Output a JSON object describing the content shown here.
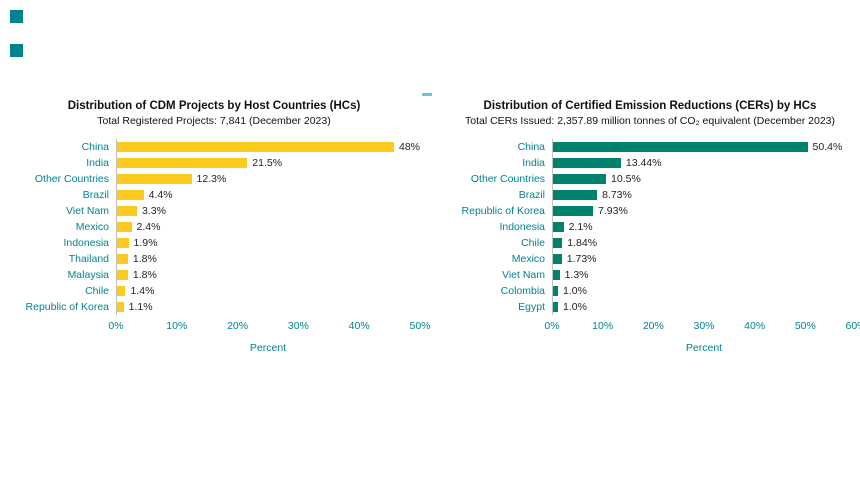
{
  "page": {
    "background": "#ffffff",
    "accent_color": "#00838F",
    "title_text_color": "#111111",
    "value_text_color": "#1f1f1f",
    "dash_color": "#6cc5d9"
  },
  "chart_data": [
    {
      "type": "bar",
      "orientation": "horizontal",
      "title": "Distribution of CDM Projects by Host Countries (HCs)",
      "subtitle": "Total Registered Projects: 7,841 (December 2023)",
      "xlabel": "Percent",
      "xlim": [
        0,
        50
      ],
      "xticks": [
        "0%",
        "10%",
        "20%",
        "30%",
        "40%",
        "50%"
      ],
      "bar_color": "#FCCB1D",
      "grid": false,
      "legend": "none",
      "categories": [
        "China",
        "India",
        "Other Countries",
        "Brazil",
        "Viet Nam",
        "Mexico",
        "Indonesia",
        "Thailand",
        "Malaysia",
        "Chile",
        "Republic of Korea"
      ],
      "values": [
        48,
        21.5,
        12.3,
        4.4,
        3.3,
        2.4,
        1.9,
        1.8,
        1.8,
        1.4,
        1.1
      ],
      "value_labels": [
        "48%",
        "21.5%",
        "12.3%",
        "4.4%",
        "3.3%",
        "2.4%",
        "1.9%",
        "1.8%",
        "1.8%",
        "1.4%",
        "1.1%"
      ]
    },
    {
      "type": "bar",
      "orientation": "horizontal",
      "title": "Distribution of Certified Emission Reductions (CERs) by HCs",
      "subtitle": "Total CERs Issued: 2,357.89 million tonnes of CO₂ equivalent (December 2023)",
      "xlabel": "Percent",
      "xlim": [
        0,
        60
      ],
      "xticks": [
        "0%",
        "10%",
        "20%",
        "30%",
        "40%",
        "50%",
        "60%"
      ],
      "bar_color": "#00836E",
      "grid": false,
      "legend": "none",
      "categories": [
        "China",
        "India",
        "Other Countries",
        "Brazil",
        "Republic of Korea",
        "Indonesia",
        "Chile",
        "Mexico",
        "Viet Nam",
        "Colombia",
        "Egypt"
      ],
      "values": [
        50.4,
        13.44,
        10.5,
        8.73,
        7.93,
        2.1,
        1.84,
        1.73,
        1.3,
        1.0,
        1.0
      ],
      "value_labels": [
        "50.4%",
        "13.44%",
        "10.5%",
        "8.73%",
        "7.93%",
        "2.1%",
        "1.84%",
        "1.73%",
        "1.3%",
        "1.0%",
        "1.0%"
      ]
    }
  ]
}
